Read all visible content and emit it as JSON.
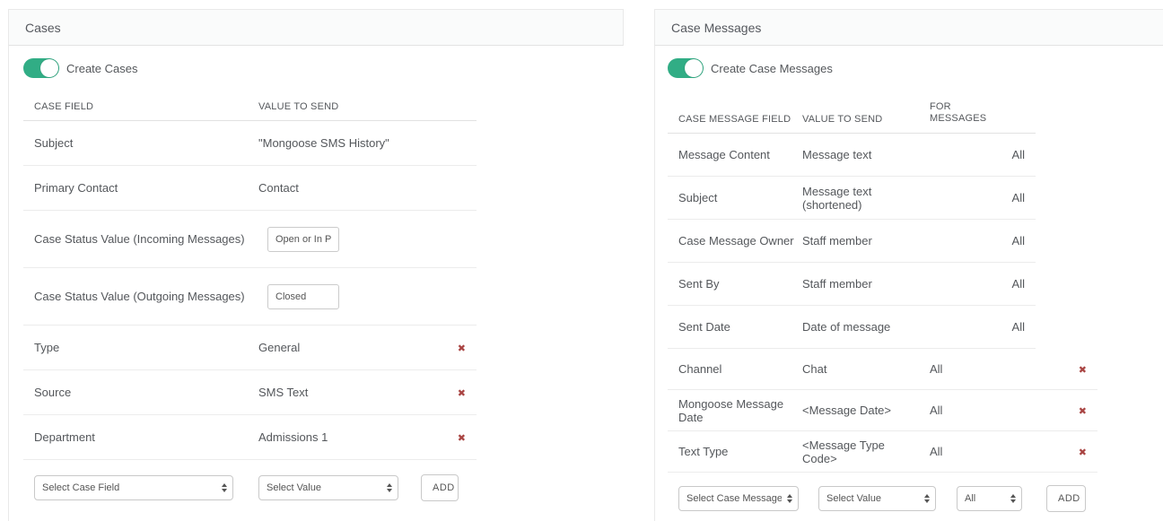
{
  "glyphs": {
    "remove": "✖"
  },
  "colors": {
    "toggle_on": "#31ad85",
    "remove": "#a94442"
  },
  "cases": {
    "title": "Cases",
    "toggle_label": "Create Cases",
    "toggle_state": "on",
    "columns": {
      "field": "CASE FIELD",
      "value": "VALUE TO SEND"
    },
    "rows": [
      {
        "field": "Subject",
        "value": "\"Mongoose SMS History\""
      },
      {
        "field": "Primary Contact",
        "value": "Contact"
      },
      {
        "field": "Case Status Value (Incoming Messages)",
        "value": "Open or In Progress"
      },
      {
        "field": "Case Status Value (Outgoing Messages)",
        "value": "Closed"
      },
      {
        "field": "Type",
        "value": "General"
      },
      {
        "field": "Source",
        "value": "SMS Text"
      },
      {
        "field": "Department",
        "value": "Admissions 1"
      }
    ],
    "footer": {
      "field_select": "Select Case Field",
      "value_select": "Select Value",
      "add_label": "ADD"
    }
  },
  "case_messages": {
    "title": "Case Messages",
    "toggle_label": "Create Case Messages",
    "toggle_state": "on",
    "columns": {
      "field": "CASE MESSAGE FIELD",
      "value": "VALUE TO SEND",
      "for": "FOR\nMESSAGES"
    },
    "rows_default": [
      {
        "field": "Message Content",
        "value": "Message text",
        "for": "All"
      },
      {
        "field": "Subject",
        "value": "Message text (shortened)",
        "for": "All"
      },
      {
        "field": "Case Message Owner",
        "value": "Staff member",
        "for": "All"
      },
      {
        "field": "Sent By",
        "value": "Staff member",
        "for": "All"
      },
      {
        "field": "Sent Date",
        "value": "Date of message",
        "for": "All"
      }
    ],
    "rows_custom": [
      {
        "field": "Channel",
        "value": "Chat",
        "for": "All"
      },
      {
        "field": "Mongoose Message Date",
        "value": "<Message Date>",
        "for": "All"
      },
      {
        "field": "Text Type",
        "value": "<Message Type Code>",
        "for": "All"
      }
    ],
    "footer": {
      "field_select": "Select Case Message Field",
      "value_select": "Select Value",
      "for_select": "All",
      "add_label": "ADD"
    }
  }
}
